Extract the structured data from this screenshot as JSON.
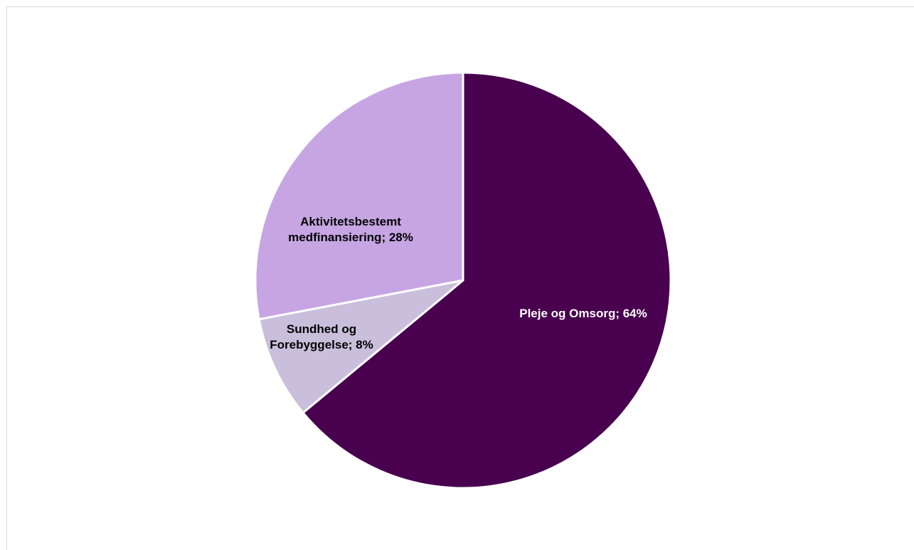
{
  "chart_data": {
    "type": "pie",
    "start_angle_deg": 0,
    "direction": "clockwise",
    "series": [
      {
        "values": [
          64,
          8,
          28
        ],
        "categories": [
          "Pleje og Omsorg",
          "Sundhed og Forebyggelse",
          "Aktivitetsbestemt medfinansiering"
        ]
      }
    ],
    "slices": [
      {
        "category": "Pleje og Omsorg",
        "value": 64,
        "label_lines": [
          "Pleje og Omsorg;  64%"
        ],
        "color": "#48004f",
        "label_color": "#ffffff"
      },
      {
        "category": "Sundhed og Forebyggelse",
        "value": 8,
        "label_lines": [
          "Sundhed og",
          "Forebyggelse; 8%"
        ],
        "color": "#c9bfdc",
        "label_color": "#000000"
      },
      {
        "category": "Aktivitetsbestemt medfinansiering",
        "value": 28,
        "label_lines": [
          "Aktivitetsbestemt",
          "medfinansiering; 28%"
        ],
        "color": "#c7a5e3",
        "label_color": "#000000"
      }
    ],
    "legend": "none"
  }
}
